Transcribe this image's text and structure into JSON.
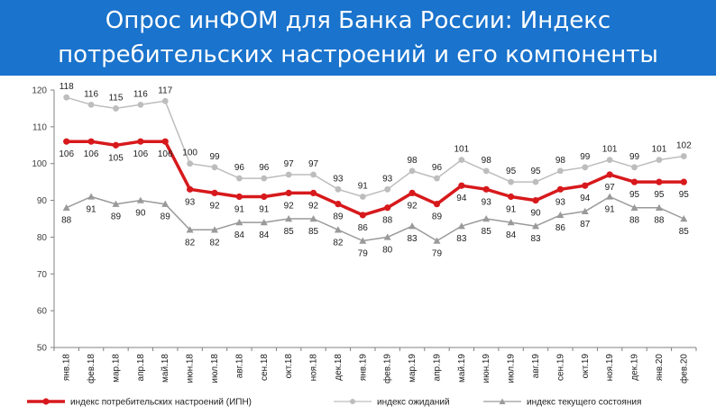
{
  "header": {
    "title_line1": "Опрос инФОМ для Банка России: Индекс",
    "title_line2": "потребительских настроений и его компоненты"
  },
  "colors": {
    "banner": "#1a73cc",
    "ipn": "#d7191c",
    "expectations": "#bdbdbd",
    "current": "#9a9a9a"
  },
  "chart_data": {
    "type": "line",
    "ylim": [
      50,
      120
    ],
    "yticks": [
      50,
      60,
      70,
      80,
      90,
      100,
      110,
      120
    ],
    "grid": false,
    "legend_position": "bottom",
    "categories": [
      "янв.18",
      "фев.18",
      "мар.18",
      "апр.18",
      "май.18",
      "июн.18",
      "июл.18",
      "авг.18",
      "сен.18",
      "окт.18",
      "ноя.18",
      "дек.18",
      "янв.19",
      "фев.19",
      "мар.19",
      "апр.19",
      "май.19",
      "июн.19",
      "июл.19",
      "авг.19",
      "сен.19",
      "окт.19",
      "ноя.19",
      "дек.19",
      "янв.20",
      "фев.20"
    ],
    "series": [
      {
        "name": "индекс потребительских настроений (ИПН)",
        "key": "ipn",
        "values": [
          106,
          106,
          105,
          106,
          106,
          93,
          92,
          91,
          91,
          92,
          92,
          89,
          86,
          88,
          92,
          89,
          94,
          93,
          91,
          90,
          93,
          94,
          97,
          95,
          95,
          95
        ],
        "labels_shown": [
          "106",
          "106",
          "105",
          "106",
          "106",
          "93",
          "92",
          "91",
          "91",
          "92",
          "92",
          "89",
          "86",
          "88",
          "92",
          "89",
          "94",
          "93",
          "91",
          "90",
          "93",
          "94",
          "97",
          "95",
          "95",
          "95"
        ]
      },
      {
        "name": "индекс ожиданий",
        "key": "expectations",
        "values": [
          118,
          116,
          115,
          116,
          117,
          100,
          99,
          96,
          96,
          97,
          97,
          93,
          91,
          93,
          98,
          96,
          101,
          98,
          95,
          95,
          98,
          99,
          101,
          99,
          101,
          102
        ],
        "labels_shown": [
          "118",
          "116",
          "115",
          "116",
          "117",
          "100",
          "99",
          "96",
          "96",
          "97",
          "97",
          "93",
          "91",
          "93",
          "98",
          "96",
          "101",
          "98",
          "95",
          "95",
          "98",
          "99",
          "101",
          "99",
          "101",
          "102"
        ]
      },
      {
        "name": "индекс текущего состояния",
        "key": "current",
        "values": [
          88,
          91,
          89,
          90,
          89,
          82,
          82,
          84,
          84,
          85,
          85,
          82,
          79,
          80,
          83,
          79,
          83,
          85,
          84,
          83,
          86,
          87,
          91,
          88,
          88,
          85
        ],
        "labels_shown": [
          "88",
          "91",
          "89",
          "90",
          "89",
          "82",
          "82",
          "84",
          "84",
          "85",
          "85",
          "82",
          "79",
          "80",
          "83",
          "79",
          "83",
          "85",
          "84",
          "83",
          "86",
          "87",
          "91",
          "88",
          "88",
          "85"
        ]
      }
    ]
  }
}
